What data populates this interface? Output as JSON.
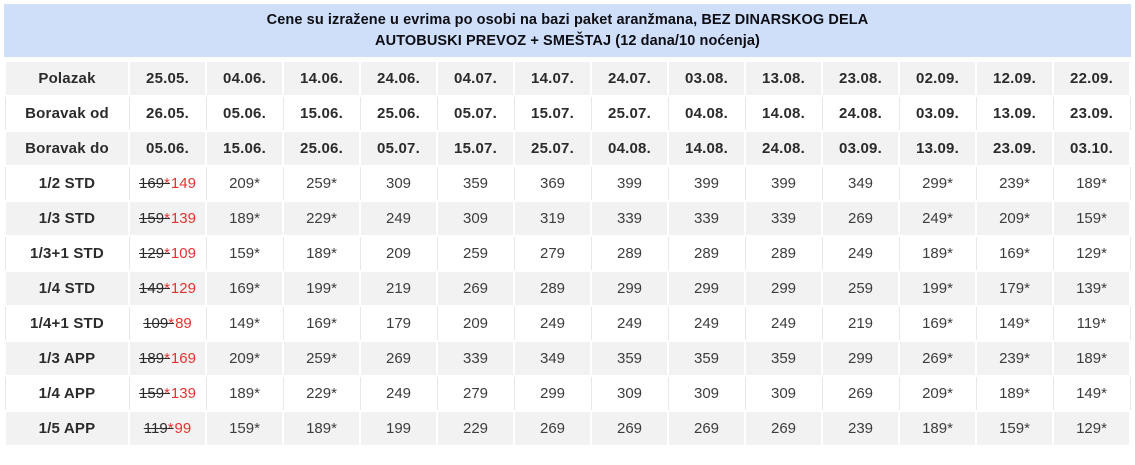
{
  "caption": {
    "line1": "Cene su izražene u evrima po osobi na bazi paket aranžmana, BEZ DINARSKOG DELA",
    "line2": "AUTOBUSKI PREVOZ + SMEŠTAJ (12 dana/10 noćenja)"
  },
  "colors": {
    "caption_bg": "#cfdffa",
    "row_stripe": "#f2f2f2",
    "border": "#e8e8e8",
    "text_dark": "#2b2b2b",
    "price_text": "#3d3d3d",
    "promo_red": "#e23331"
  },
  "table": {
    "date_rows": [
      {
        "label": "Polazak",
        "values": [
          "25.05.",
          "04.06.",
          "14.06.",
          "24.06.",
          "04.07.",
          "14.07.",
          "24.07.",
          "03.08.",
          "13.08.",
          "23.08.",
          "02.09.",
          "12.09.",
          "22.09."
        ]
      },
      {
        "label": "Boravak od",
        "values": [
          "26.05.",
          "05.06.",
          "15.06.",
          "25.06.",
          "05.07.",
          "15.07.",
          "25.07.",
          "04.08.",
          "14.08.",
          "24.08.",
          "03.09.",
          "13.09.",
          "23.09."
        ]
      },
      {
        "label": "Boravak do",
        "values": [
          "05.06.",
          "15.06.",
          "25.06.",
          "05.07.",
          "15.07.",
          "25.07.",
          "04.08.",
          "14.08.",
          "24.08.",
          "03.09.",
          "13.09.",
          "23.09.",
          "03.10."
        ]
      }
    ],
    "price_rows": [
      {
        "label": "1/2 STD",
        "promo": {
          "old": "169",
          "star": "*",
          "new": "149"
        },
        "values": [
          "209*",
          "259*",
          "309",
          "359",
          "369",
          "399",
          "399",
          "399",
          "349",
          "299*",
          "239*",
          "189*"
        ]
      },
      {
        "label": "1/3 STD",
        "promo": {
          "old": "159",
          "star": "*",
          "new": "139"
        },
        "values": [
          "189*",
          "229*",
          "249",
          "309",
          "319",
          "339",
          "339",
          "339",
          "269",
          "249*",
          "209*",
          "159*"
        ]
      },
      {
        "label": "1/3+1 STD",
        "promo": {
          "old": "129",
          "star": "*",
          "new": "109"
        },
        "values": [
          "159*",
          "189*",
          "209",
          "259",
          "279",
          "289",
          "289",
          "289",
          "249",
          "189*",
          "169*",
          "129*"
        ]
      },
      {
        "label": "1/4 STD",
        "promo": {
          "old": "149",
          "star": "*",
          "new": "129"
        },
        "values": [
          "169*",
          "199*",
          "219",
          "269",
          "289",
          "299",
          "299",
          "299",
          "259",
          "199*",
          "179*",
          "139*"
        ]
      },
      {
        "label": "1/4+1 STD",
        "promo": {
          "old": "109",
          "star": "*",
          "new": "89"
        },
        "values": [
          "149*",
          "169*",
          "179",
          "209",
          "249",
          "249",
          "249",
          "249",
          "219",
          "169*",
          "149*",
          "119*"
        ]
      },
      {
        "label": "1/3 APP",
        "promo": {
          "old": "189",
          "star": "*",
          "new": "169"
        },
        "values": [
          "209*",
          "259*",
          "269",
          "339",
          "349",
          "359",
          "359",
          "359",
          "299",
          "269*",
          "239*",
          "189*"
        ]
      },
      {
        "label": "1/4 APP",
        "promo": {
          "old": "159",
          "star": "*",
          "new": "139"
        },
        "values": [
          "189*",
          "229*",
          "249",
          "279",
          "299",
          "309",
          "309",
          "309",
          "269",
          "209*",
          "189*",
          "149*"
        ]
      },
      {
        "label": "1/5 APP",
        "promo": {
          "old": "119",
          "star": "*",
          "new": "99"
        },
        "values": [
          "159*",
          "189*",
          "199",
          "229",
          "269",
          "269",
          "269",
          "269",
          "239",
          "189*",
          "159*",
          "129*"
        ]
      }
    ]
  }
}
